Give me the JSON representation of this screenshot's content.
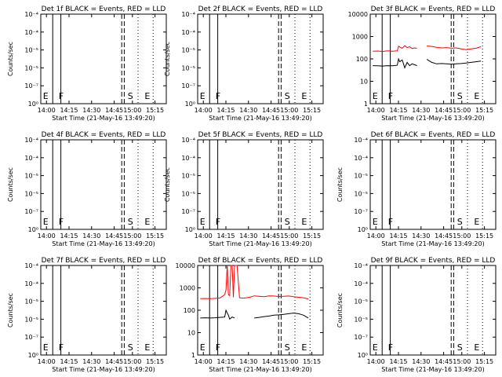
{
  "chart_data": [
    {
      "type": "line",
      "title": "Det 1f BLACK = Events, RED = LLD",
      "xlabel": "Start Time (21-May-16 13:49:20)",
      "ylabel": "Counts/sec",
      "yscale": "log",
      "ylim": [
        0.001,
        1e-08
      ],
      "yticks": [
        "10⁻⁴",
        "10⁻⁴",
        "10⁻⁵",
        "10⁻⁵",
        "10⁻⁷",
        "10⁰"
      ],
      "xticks": [
        "14:00",
        "14:15",
        "14:30",
        "14:45",
        "15:00",
        "15:15"
      ],
      "markers": [
        "E",
        "F",
        "S",
        "E"
      ],
      "series": []
    },
    {
      "type": "line",
      "title": "Det 2f BLACK = Events, RED = LLD",
      "xlabel": "Start Time (21-May-16 13:49:20)",
      "ylabel": "Counts/sec",
      "yscale": "log",
      "ylim": [
        0.001,
        1e-08
      ],
      "yticks": [
        "10⁻⁴",
        "10⁻⁴",
        "10⁻⁵",
        "10⁻⁵",
        "10⁻⁷",
        "10⁰"
      ],
      "xticks": [
        "14:00",
        "14:15",
        "14:30",
        "14:45",
        "15:00",
        "15:15"
      ],
      "markers": [
        "E",
        "F",
        "S",
        "E"
      ],
      "series": []
    },
    {
      "type": "line",
      "title": "Det 3f BLACK = Events, RED = LLD",
      "xlabel": "Start Time (21-May-16 13:49:20)",
      "ylabel": "",
      "yscale": "log",
      "ylim": [
        1,
        10000
      ],
      "yticks": [
        "10000",
        "1000",
        "100",
        "10",
        "1"
      ],
      "xticks": [
        "14:00",
        "14:15",
        "14:30",
        "14:45",
        "15:00",
        "15:15"
      ],
      "markers": [
        "E",
        "F",
        "S",
        "E"
      ],
      "series": [
        {
          "color": "#ff0000",
          "x": [
            0,
            4,
            8,
            12,
            16,
            20,
            21,
            22,
            24,
            26,
            28,
            30,
            32,
            34,
            36,
            40,
            44,
            48,
            52,
            56,
            60,
            64,
            68,
            72,
            76,
            80,
            84,
            88
          ],
          "y": [
            220,
            225,
            215,
            230,
            220,
            230,
            370,
            340,
            300,
            390,
            320,
            350,
            290,
            310,
            300,
            null,
            380,
            360,
            330,
            310,
            320,
            300,
            310,
            280,
            260,
            280,
            300,
            350
          ]
        },
        {
          "color": "#000000",
          "x": [
            0,
            4,
            8,
            12,
            16,
            20,
            21,
            22,
            24,
            26,
            28,
            30,
            32,
            34,
            36,
            40,
            44,
            48,
            52,
            56,
            60,
            64,
            68,
            72,
            76,
            80,
            84,
            88
          ],
          "y": [
            50,
            49,
            48,
            50,
            49,
            52,
            100,
            75,
            90,
            40,
            70,
            50,
            60,
            55,
            50,
            null,
            95,
            70,
            60,
            62,
            60,
            58,
            60,
            62,
            65,
            70,
            75,
            80
          ]
        }
      ]
    },
    {
      "type": "line",
      "title": "Det 4f BLACK = Events, RED = LLD",
      "xlabel": "Start Time (21-May-16 13:49:20)",
      "ylabel": "Counts/sec",
      "yscale": "log",
      "ylim": [
        0.001,
        1e-08
      ],
      "yticks": [
        "10⁻⁴",
        "10⁻⁴",
        "10⁻⁵",
        "10⁻⁵",
        "10⁻⁷",
        "10⁰"
      ],
      "xticks": [
        "14:00",
        "14:15",
        "14:30",
        "14:45",
        "15:00",
        "15:15"
      ],
      "markers": [
        "E",
        "F",
        "S",
        "E"
      ],
      "series": []
    },
    {
      "type": "line",
      "title": "Det 5f BLACK = Events, RED = LLD",
      "xlabel": "Start Time (21-May-16 13:49:20)",
      "ylabel": "Counts/sec",
      "yscale": "log",
      "ylim": [
        0.001,
        1e-08
      ],
      "yticks": [
        "10⁻⁴",
        "10⁻⁴",
        "10⁻⁵",
        "10⁻⁵",
        "10⁻⁷",
        "10⁰"
      ],
      "xticks": [
        "14:00",
        "14:15",
        "14:30",
        "14:45",
        "15:00",
        "15:15"
      ],
      "markers": [
        "E",
        "F",
        "S",
        "E"
      ],
      "series": []
    },
    {
      "type": "line",
      "title": "Det 6f BLACK = Events, RED = LLD",
      "xlabel": "Start Time (21-May-16 13:49:20)",
      "ylabel": "Counts/sec",
      "yscale": "log",
      "ylim": [
        0.001,
        1e-08
      ],
      "yticks": [
        "10⁻⁴",
        "10⁻⁴",
        "10⁻⁵",
        "10⁻⁵",
        "10⁻⁷",
        "10⁰"
      ],
      "xticks": [
        "14:00",
        "14:15",
        "14:30",
        "14:45",
        "15:00",
        "15:15"
      ],
      "markers": [
        "E",
        "F",
        "S",
        "E"
      ],
      "series": []
    },
    {
      "type": "line",
      "title": "Det 7f BLACK = Events, RED = LLD",
      "xlabel": "Start Time (21-May-16 13:49:20)",
      "ylabel": "Counts/sec",
      "yscale": "log",
      "ylim": [
        0.001,
        1e-08
      ],
      "yticks": [
        "10⁻⁴",
        "10⁻⁴",
        "10⁻⁵",
        "10⁻⁵",
        "10⁻⁷",
        "10⁰"
      ],
      "xticks": [
        "14:00",
        "14:15",
        "14:30",
        "14:45",
        "15:00",
        "15:15"
      ],
      "markers": [
        "E",
        "F",
        "S",
        "E"
      ],
      "series": []
    },
    {
      "type": "line",
      "title": "Det 8f BLACK = Events, RED = LLD",
      "xlabel": "Start Time (21-May-16 13:49:20)",
      "ylabel": "",
      "yscale": "log",
      "ylim": [
        1,
        10000
      ],
      "yticks": [
        "10000",
        "1000",
        "100",
        "10",
        "1"
      ],
      "xticks": [
        "14:00",
        "14:15",
        "14:30",
        "14:45",
        "15:00",
        "15:15"
      ],
      "markers": [
        "E",
        "F",
        "S",
        "E"
      ],
      "series": [
        {
          "color": "#ff0000",
          "x": [
            0,
            4,
            8,
            12,
            16,
            20,
            21,
            22,
            23,
            24,
            25,
            26,
            27,
            28,
            29,
            30,
            32,
            34,
            36,
            40,
            44,
            48,
            52,
            56,
            60,
            64,
            68,
            72,
            76,
            80,
            84,
            88
          ],
          "y": [
            330,
            335,
            330,
            340,
            350,
            500,
            800,
            10000,
            500,
            450,
            10000,
            10000,
            380,
            10000,
            10000,
            10000,
            360,
            350,
            350,
            380,
            440,
            420,
            400,
            440,
            430,
            410,
            420,
            430,
            400,
            380,
            360,
            320
          ]
        },
        {
          "color": "#000000",
          "x": [
            0,
            4,
            8,
            12,
            16,
            20,
            21,
            22,
            23,
            24,
            26,
            28,
            30,
            32,
            34,
            36,
            40,
            44,
            48,
            52,
            56,
            60,
            64,
            68,
            72,
            76,
            80,
            84,
            88
          ],
          "y": [
            45,
            46,
            45,
            46,
            48,
            50,
            100,
            75,
            60,
            40,
            50,
            45,
            null,
            null,
            null,
            40,
            null,
            45,
            48,
            52,
            55,
            60,
            62,
            65,
            70,
            75,
            70,
            60,
            45
          ]
        }
      ]
    },
    {
      "type": "line",
      "title": "Det 9f BLACK = Events, RED = LLD",
      "xlabel": "Start Time (21-May-16 13:49:20)",
      "ylabel": "Counts/sec",
      "yscale": "log",
      "ylim": [
        0.001,
        1e-08
      ],
      "yticks": [
        "10⁻⁴",
        "10⁻⁴",
        "10⁻⁵",
        "10⁻⁵",
        "10⁻⁷",
        "10⁰"
      ],
      "xticks": [
        "14:00",
        "14:15",
        "14:30",
        "14:45",
        "15:00",
        "15:15"
      ],
      "markers": [
        "E",
        "F",
        "S",
        "E"
      ],
      "series": []
    }
  ],
  "colors": {
    "events": "#000000",
    "lld": "#ff0000"
  }
}
